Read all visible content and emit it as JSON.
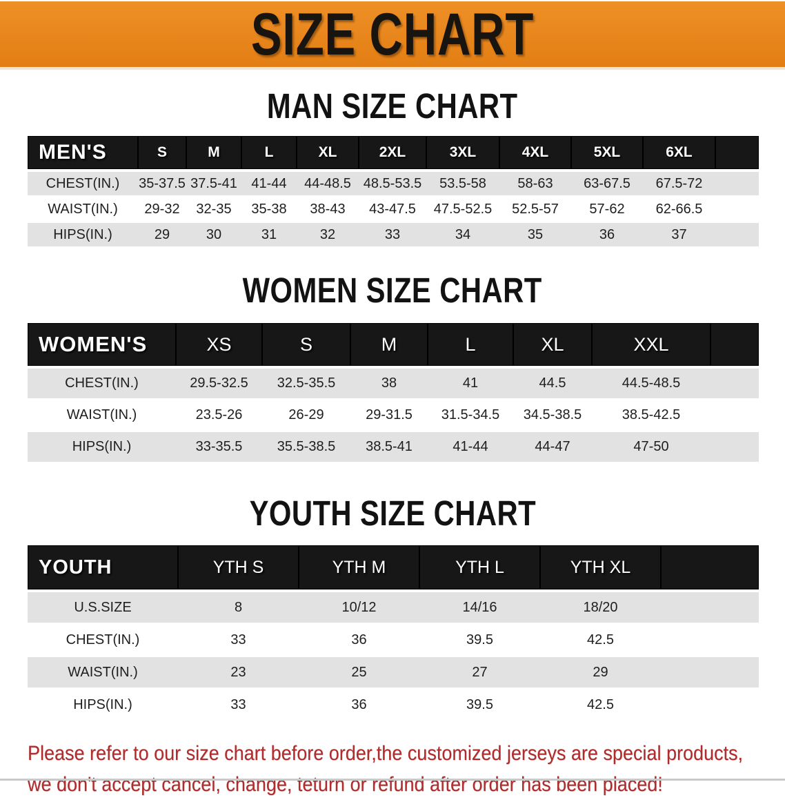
{
  "banner": {
    "title": "SIZE CHART",
    "bg_color": "#E8841E",
    "text_color": "#181410"
  },
  "sections": {
    "men": {
      "heading": "MAN SIZE CHART",
      "table": {
        "label": "MEN'S",
        "columns": [
          "S",
          "M",
          "L",
          "XL",
          "2XL",
          "3XL",
          "4XL",
          "5XL",
          "6XL"
        ],
        "rows": [
          {
            "label": "CHEST(IN.)",
            "values": [
              "35-37.5",
              "37.5-41",
              "41-44",
              "44-48.5",
              "48.5-53.5",
              "53.5-58",
              "58-63",
              "63-67.5",
              "67.5-72"
            ]
          },
          {
            "label": "WAIST(IN.)",
            "values": [
              "29-32",
              "32-35",
              "35-38",
              "38-43",
              "43-47.5",
              "47.5-52.5",
              "52.5-57",
              "57-62",
              "62-66.5"
            ]
          },
          {
            "label": "HIPS(IN.)",
            "values": [
              "29",
              "30",
              "31",
              "32",
              "33",
              "34",
              "35",
              "36",
              "37"
            ]
          }
        ]
      }
    },
    "women": {
      "heading": "WOMEN SIZE CHART",
      "table": {
        "label": "WOMEN'S",
        "columns": [
          "XS",
          "S",
          "M",
          "L",
          "XL",
          "XXL"
        ],
        "rows": [
          {
            "label": "CHEST(IN.)",
            "values": [
              "29.5-32.5",
              "32.5-35.5",
              "38",
              "41",
              "44.5",
              "44.5-48.5"
            ]
          },
          {
            "label": "WAIST(IN.)",
            "values": [
              "23.5-26",
              "26-29",
              "29-31.5",
              "31.5-34.5",
              "34.5-38.5",
              "38.5-42.5"
            ]
          },
          {
            "label": "HIPS(IN.)",
            "values": [
              "33-35.5",
              "35.5-38.5",
              "38.5-41",
              "41-44",
              "44-47",
              "47-50"
            ]
          }
        ]
      }
    },
    "youth": {
      "heading": "YOUTH SIZE CHART",
      "table": {
        "label": "YOUTH",
        "columns": [
          "YTH S",
          "YTH M",
          "YTH L",
          "YTH XL"
        ],
        "rows": [
          {
            "label": "U.S.SIZE",
            "values": [
              "8",
              "10/12",
              "14/16",
              "18/20"
            ]
          },
          {
            "label": "CHEST(IN.)",
            "values": [
              "33",
              "36",
              "39.5",
              "42.5"
            ]
          },
          {
            "label": "WAIST(IN.)",
            "values": [
              "23",
              "25",
              "27",
              "29"
            ]
          },
          {
            "label": "HIPS(IN.)",
            "values": [
              "33",
              "36",
              "39.5",
              "42.5"
            ]
          }
        ]
      }
    }
  },
  "footer": {
    "line1": "Please refer to our size chart before order,the customized jerseys are special products,",
    "line2": "we don't accept cancel, change, teturn or refund after order has been placed!",
    "text_color": "#B02C2C"
  },
  "style_tokens": {
    "header_band_color": "#171717",
    "row_stripe_color": "#E2E2E2"
  }
}
